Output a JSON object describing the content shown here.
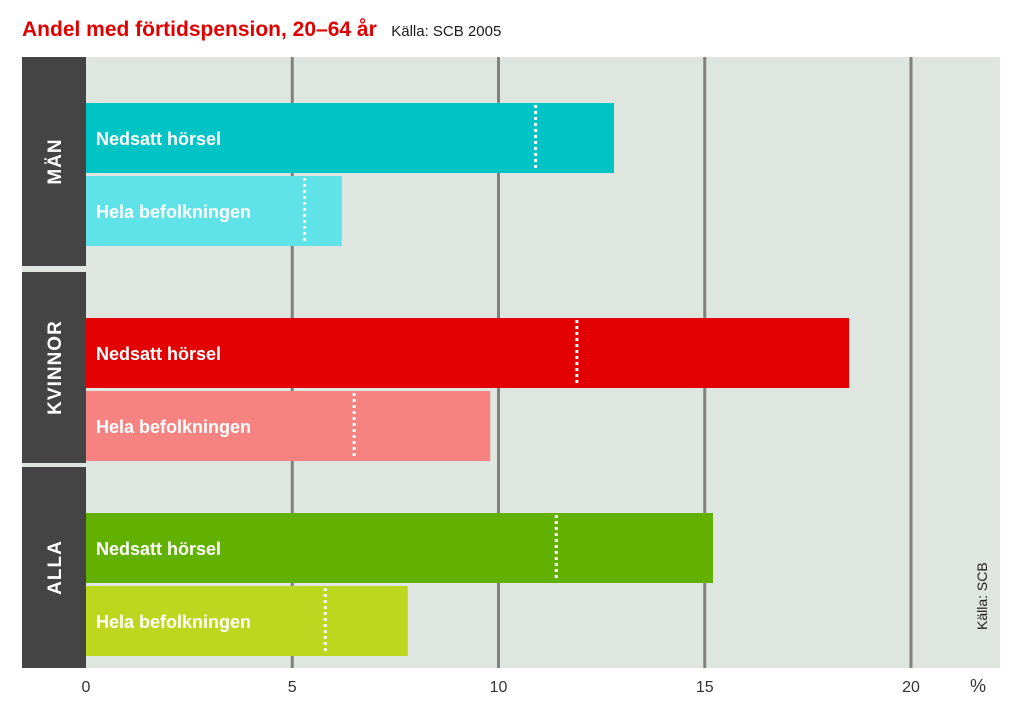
{
  "chart_data": {
    "type": "bar",
    "orientation": "horizontal",
    "title": "Andel med förtidspension, 20–64 år",
    "subtitle": "Källa: SCB 2005",
    "source_note": "Källa: SCB",
    "unit_label": "%",
    "xlim": [
      0,
      22
    ],
    "xticks": [
      {
        "value": 0,
        "label": "0"
      },
      {
        "value": 5,
        "label": "5"
      },
      {
        "value": 10,
        "label": "10"
      },
      {
        "value": 15,
        "label": "15"
      },
      {
        "value": 20,
        "label": "20"
      }
    ],
    "grid": true,
    "groups": [
      {
        "name": "MÄN",
        "color": "#444444",
        "bars": [
          {
            "label": "Nedsatt hörsel",
            "value": 12.8,
            "marker": 10.9,
            "color": "#00c3c6"
          },
          {
            "label": "Hela befolkningen",
            "value": 6.2,
            "marker": 5.3,
            "color": "#5fe3e8"
          }
        ]
      },
      {
        "name": "KVINNOR",
        "color": "#444444",
        "bars": [
          {
            "label": "Nedsatt hörsel",
            "value": 18.5,
            "marker": 11.9,
            "color": "#e30000"
          },
          {
            "label": "Hela befolkningen",
            "value": 9.8,
            "marker": 6.5,
            "color": "#f78282"
          }
        ]
      },
      {
        "name": "ALLA",
        "color": "#444444",
        "bars": [
          {
            "label": "Nedsatt hörsel",
            "value": 15.2,
            "marker": 11.4,
            "color": "#62b100"
          },
          {
            "label": "Hela befolkningen",
            "value": 7.8,
            "marker": 5.8,
            "color": "#bdd61e"
          }
        ]
      }
    ],
    "colors": {
      "plot_background": "#dfe5df",
      "gridline": "#808080",
      "marker": "#ffffff"
    }
  }
}
